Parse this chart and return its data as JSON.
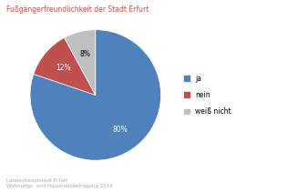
{
  "title": "Fußgängerfreundlichkeit der Stadt Erfurt",
  "title_color": "#c0504d",
  "title_fontsize": 5.5,
  "labels": [
    "ja",
    "nein",
    "weiß nicht"
  ],
  "values": [
    81,
    12,
    8
  ],
  "colors": [
    "#4f81bd",
    "#c0504d",
    "#c0bfbf"
  ],
  "autopct_fontsize": 5.5,
  "legend_labels": [
    "ja",
    "nein",
    "weiß nicht"
  ],
  "legend_fontsize": 5.5,
  "footnote": "Landeshauptstadt Erfurt\nWohnungs- und Haushaltsbefragung 2016",
  "footnote_fontsize": 4.0,
  "background_color": "#ffffff",
  "startangle": 90,
  "wedge_edgecolor": "#ffffff",
  "pct_colors": [
    "white",
    "white",
    "black"
  ]
}
